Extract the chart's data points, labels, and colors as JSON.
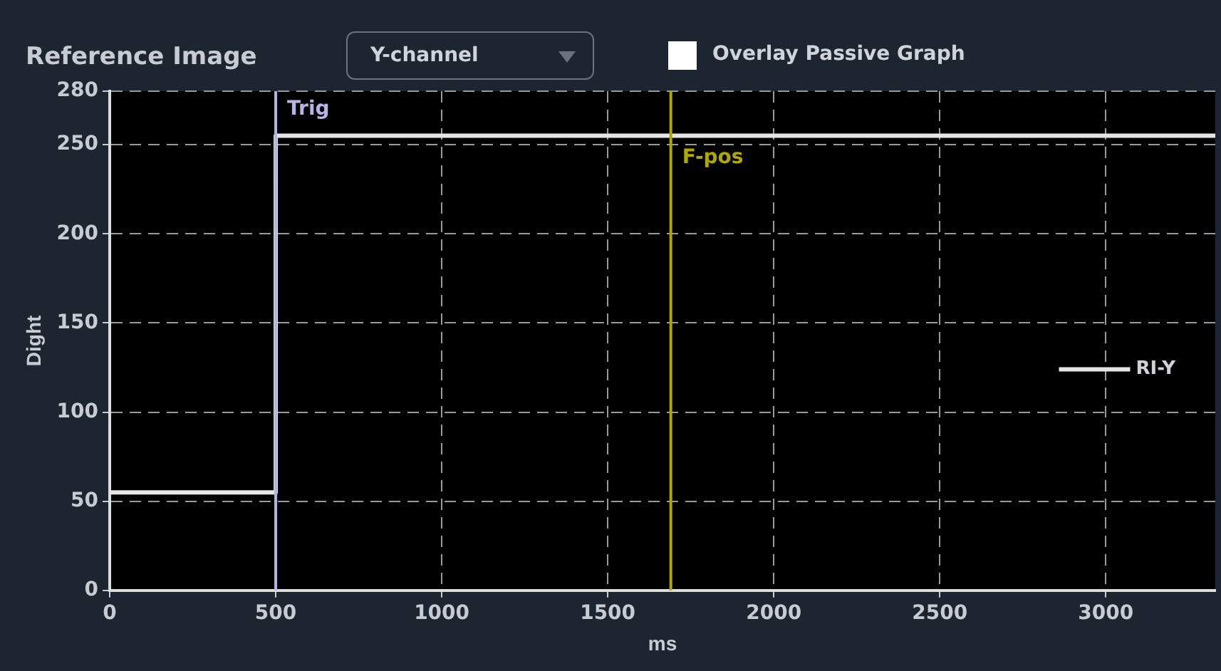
{
  "chart_data": {
    "type": "step",
    "title": "Reference Image",
    "xlabel": "ms",
    "ylabel": "Dight",
    "annotations": [
      "Y-channel",
      "Overlay Passive Graph"
    ],
    "x": [
      0,
      500,
      3330
    ],
    "series": [
      {
        "name": "RI-Y",
        "color": "#e6e6e6",
        "values": [
          55,
          255,
          255
        ]
      }
    ],
    "xlim": [
      0,
      3330
    ],
    "xticks": [
      0,
      500,
      1000,
      1500,
      2000,
      2500,
      3000
    ],
    "ylim": [
      0,
      280
    ],
    "yticks": [
      0,
      50,
      100,
      150,
      200,
      250,
      280
    ],
    "ref_lines": [
      {
        "axis": "x",
        "value": 500,
        "label": "Trig",
        "color": "#b4b4e6"
      },
      {
        "axis": "x",
        "value": 1690,
        "label": "F-pos",
        "color": "#b0a800"
      }
    ],
    "grid": true,
    "legend": "right",
    "marker": "none",
    "line_style": "solid"
  }
}
